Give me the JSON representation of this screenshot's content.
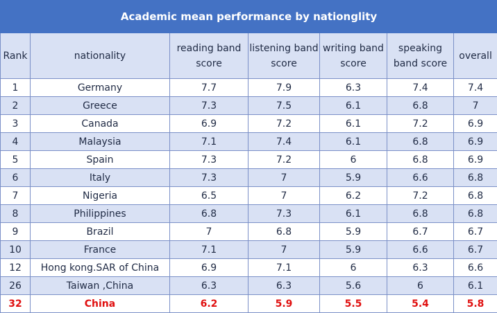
{
  "chart_data": {
    "type": "table",
    "title": "Academic mean performance by nationglity",
    "columns": [
      "Rank",
      "nationality",
      "reading band score",
      "listening band score",
      "writing band score",
      "speaking band score",
      "overall"
    ],
    "rows": [
      [
        "1",
        "Germany",
        "7.7",
        "7.9",
        "6.3",
        "7.4",
        "7.4"
      ],
      [
        "2",
        "Greece",
        "7.3",
        "7.5",
        "6.1",
        "6.8",
        "7"
      ],
      [
        "3",
        "Canada",
        "6.9",
        "7.2",
        "6.1",
        "7.2",
        "6.9"
      ],
      [
        "4",
        "Malaysia",
        "7.1",
        "7.4",
        "6.1",
        "6.8",
        "6.9"
      ],
      [
        "5",
        "Spain",
        "7.3",
        "7.2",
        "6",
        "6.8",
        "6.9"
      ],
      [
        "6",
        "Italy",
        "7.3",
        "7",
        "5.9",
        "6.6",
        "6.8"
      ],
      [
        "7",
        "Nigeria",
        "6.5",
        "7",
        "6.2",
        "7.2",
        "6.8"
      ],
      [
        "8",
        "Philippines",
        "6.8",
        "7.3",
        "6.1",
        "6.8",
        "6.8"
      ],
      [
        "9",
        "Brazil",
        "7",
        "6.8",
        "5.9",
        "6.7",
        "6.7"
      ],
      [
        "10",
        "France",
        "7.1",
        "7",
        "5.9",
        "6.6",
        "6.7"
      ],
      [
        "12",
        "Hong kong.SAR of China",
        "6.9",
        "7.1",
        "6",
        "6.3",
        "6.6"
      ],
      [
        "26",
        "Taiwan ,China",
        "6.3",
        "6.3",
        "5.6",
        "6",
        "6.1"
      ],
      [
        "32",
        "China",
        "6.2",
        "5.9",
        "5.5",
        "5.4",
        "5.8"
      ]
    ],
    "highlight_row": 12,
    "colors": {
      "header": "#4472c4",
      "band": "#d9e1f4",
      "border": "#7a8fc7",
      "highlight": "#e01010"
    }
  }
}
